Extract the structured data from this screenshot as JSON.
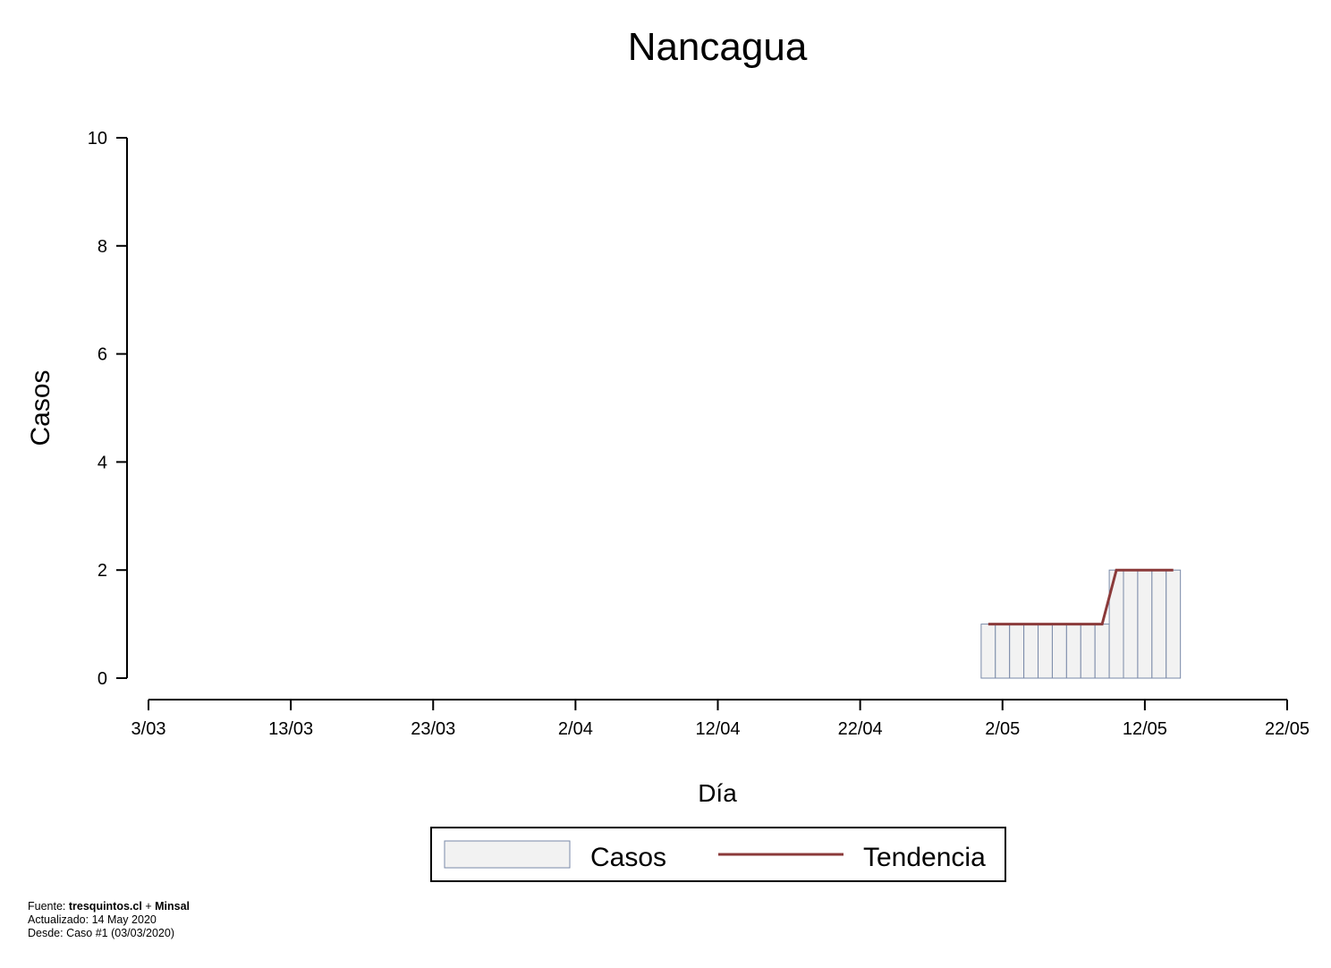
{
  "chart_data": {
    "type": "bar",
    "title": "Nancagua",
    "xlabel": "Día",
    "ylabel": "Casos",
    "ylim": [
      0,
      10
    ],
    "y_ticks": [
      0,
      2,
      4,
      6,
      8,
      10
    ],
    "x_range": [
      "2020-03-03",
      "2020-05-22"
    ],
    "x_ticks": [
      {
        "date": "2020-03-03",
        "label": "3/03"
      },
      {
        "date": "2020-03-13",
        "label": "13/03"
      },
      {
        "date": "2020-03-23",
        "label": "23/03"
      },
      {
        "date": "2020-04-02",
        "label": "2/04"
      },
      {
        "date": "2020-04-12",
        "label": "12/04"
      },
      {
        "date": "2020-04-22",
        "label": "22/04"
      },
      {
        "date": "2020-05-02",
        "label": "2/05"
      },
      {
        "date": "2020-05-12",
        "label": "12/05"
      },
      {
        "date": "2020-05-22",
        "label": "22/05"
      }
    ],
    "series": [
      {
        "name": "Casos",
        "color": "#f2f2f2",
        "border": "#7a8aa8",
        "points": [
          {
            "x": "2020-05-01",
            "y": 1
          },
          {
            "x": "2020-05-02",
            "y": 1
          },
          {
            "x": "2020-05-03",
            "y": 1
          },
          {
            "x": "2020-05-04",
            "y": 1
          },
          {
            "x": "2020-05-05",
            "y": 1
          },
          {
            "x": "2020-05-06",
            "y": 1
          },
          {
            "x": "2020-05-07",
            "y": 1
          },
          {
            "x": "2020-05-08",
            "y": 1
          },
          {
            "x": "2020-05-09",
            "y": 1
          },
          {
            "x": "2020-05-10",
            "y": 2
          },
          {
            "x": "2020-05-11",
            "y": 2
          },
          {
            "x": "2020-05-12",
            "y": 2
          },
          {
            "x": "2020-05-13",
            "y": 2
          },
          {
            "x": "2020-05-14",
            "y": 2
          }
        ]
      },
      {
        "name": "Tendencia",
        "type": "line",
        "color": "#8b3a3a",
        "points": [
          {
            "x": "2020-05-01",
            "y": 1
          },
          {
            "x": "2020-05-09",
            "y": 1
          },
          {
            "x": "2020-05-10",
            "y": 2
          },
          {
            "x": "2020-05-14",
            "y": 2
          }
        ]
      }
    ],
    "legend": {
      "placement": "bottom-center",
      "entries": [
        "Casos",
        "Tendencia"
      ]
    }
  },
  "footer": {
    "source_prefix": "Fuente: ",
    "source_site": "tresquintos.cl",
    "source_join": " + ",
    "source_org": "Minsal",
    "updated": "Actualizado: 14 May 2020",
    "since": "Desde: Caso #1  (03/03/2020)"
  }
}
